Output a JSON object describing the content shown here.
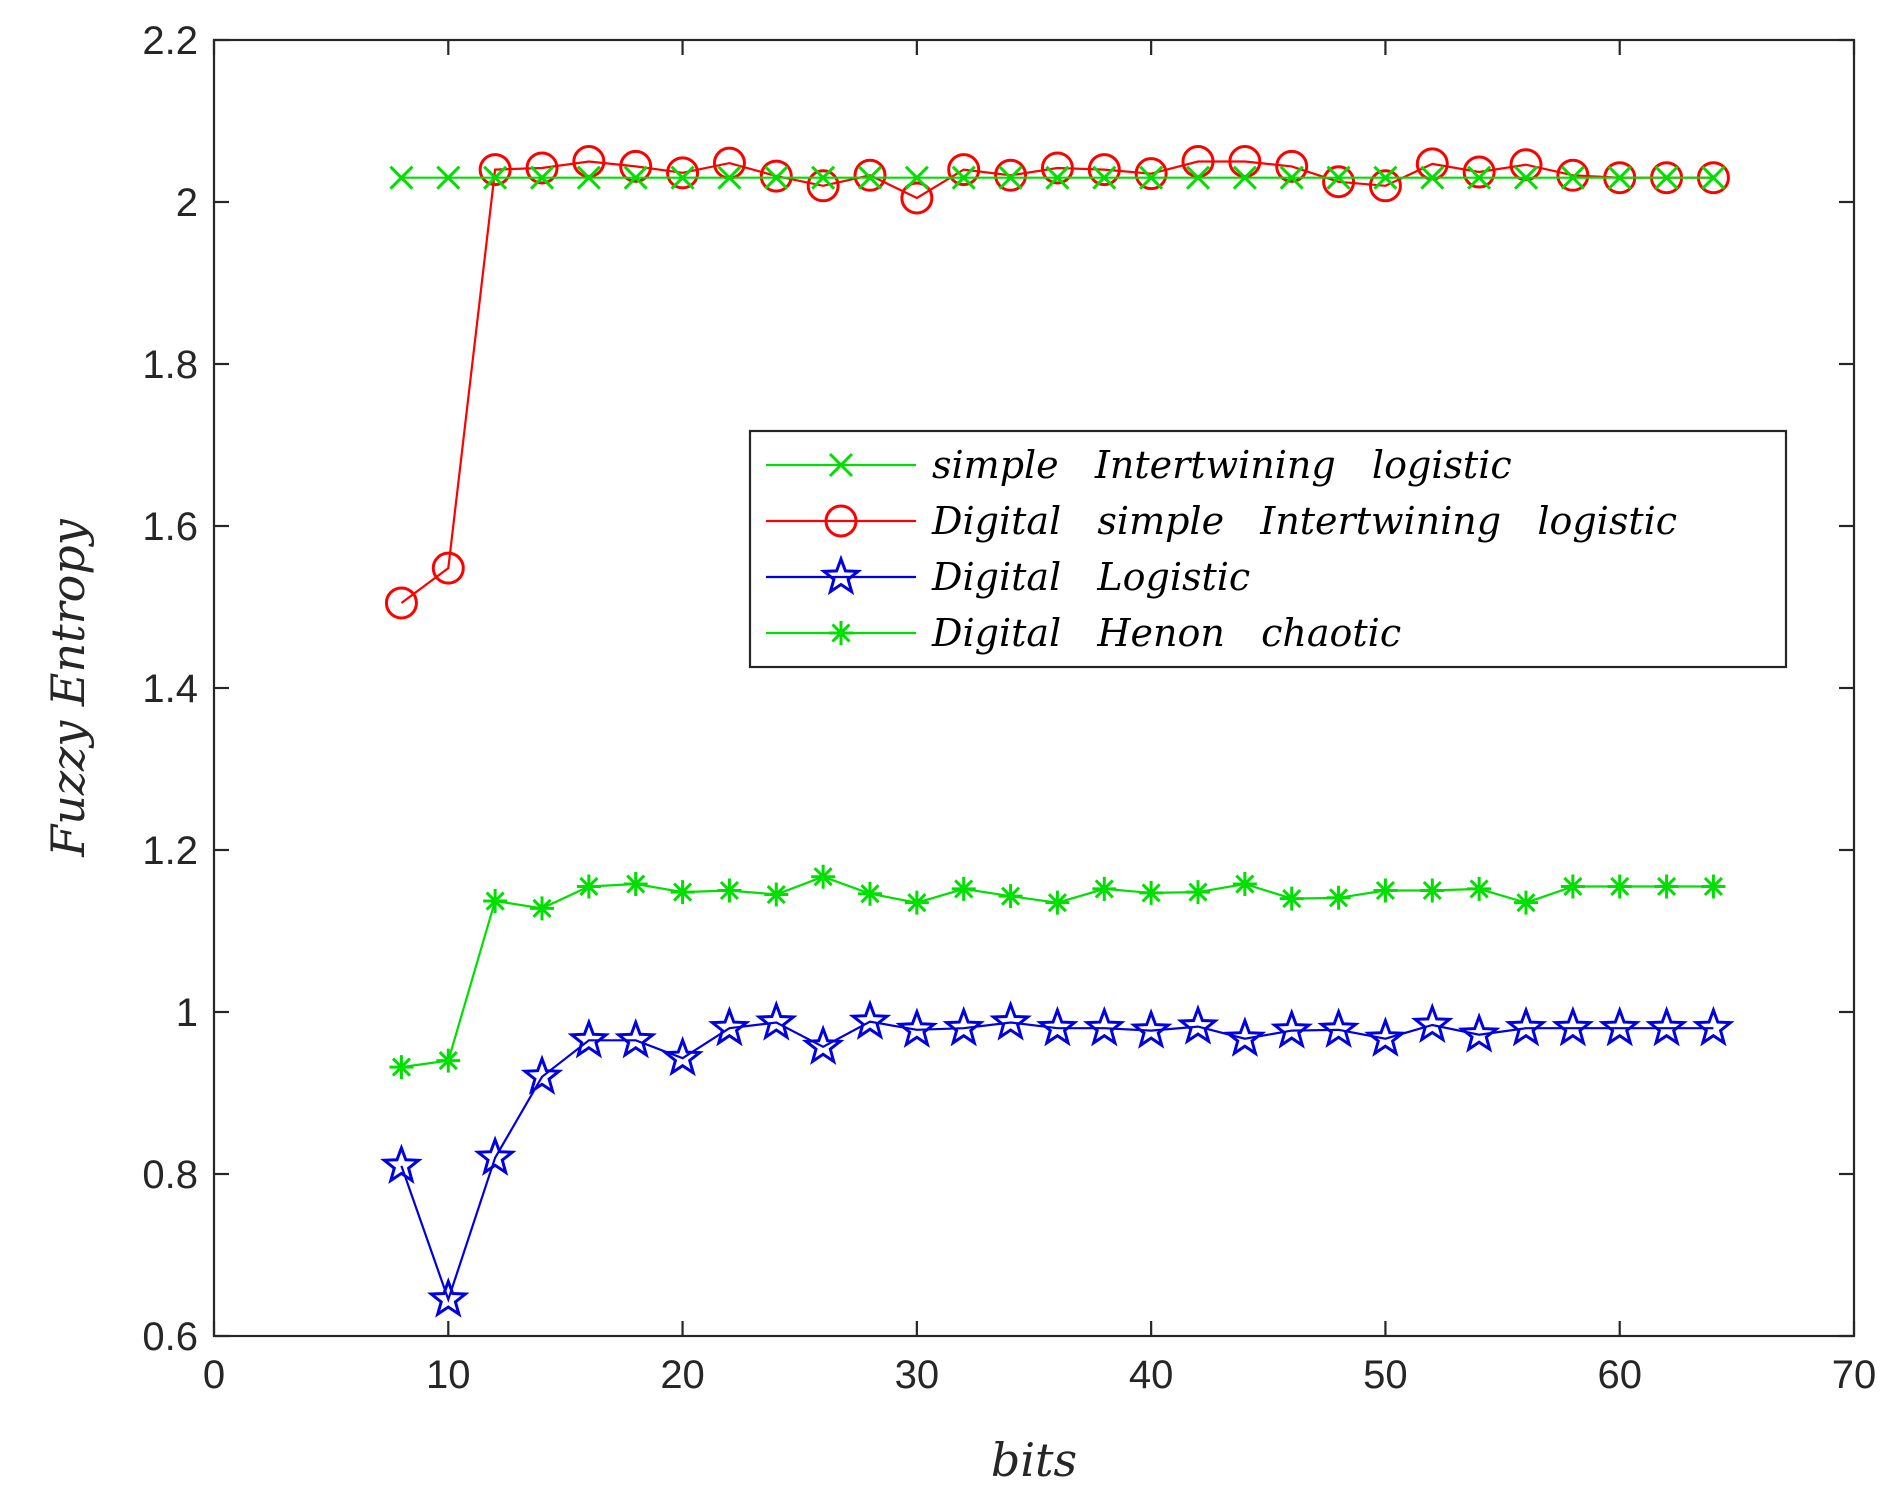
{
  "chart_data": {
    "type": "line",
    "xlabel": "bits",
    "ylabel": "Fuzzy   Entropy",
    "xlim": [
      0,
      70
    ],
    "ylim": [
      0.6,
      2.2
    ],
    "xticks": [
      0,
      10,
      20,
      30,
      40,
      50,
      60,
      70
    ],
    "yticks": [
      0.6,
      0.8,
      1,
      1.2,
      1.4,
      1.6,
      1.8,
      2,
      2.2
    ],
    "xtick_labels": [
      "0",
      "10",
      "20",
      "30",
      "40",
      "50",
      "60",
      "70"
    ],
    "ytick_labels": [
      "0.6",
      "0.8",
      "1",
      "1.2",
      "1.4",
      "1.6",
      "1.8",
      "2",
      "2.2"
    ],
    "grid": false,
    "legend_position": "center-right",
    "x": [
      8,
      10,
      12,
      14,
      16,
      18,
      20,
      22,
      24,
      26,
      28,
      30,
      32,
      34,
      36,
      38,
      40,
      42,
      44,
      46,
      48,
      50,
      52,
      54,
      56,
      58,
      60,
      62,
      64
    ],
    "series": [
      {
        "name": "simple   Intertwining   logistic",
        "color": "#00e000",
        "marker": "x",
        "values": [
          2.03,
          2.03,
          2.03,
          2.03,
          2.03,
          2.03,
          2.03,
          2.03,
          2.03,
          2.03,
          2.03,
          2.03,
          2.03,
          2.03,
          2.03,
          2.03,
          2.03,
          2.03,
          2.03,
          2.03,
          2.03,
          2.03,
          2.03,
          2.03,
          2.03,
          2.03,
          2.03,
          2.03,
          2.03
        ]
      },
      {
        "name": "Digital   simple   Intertwining   logistic",
        "color": "#ff0000",
        "marker": "o",
        "values": [
          1.505,
          1.548,
          2.04,
          2.042,
          2.05,
          2.044,
          2.036,
          2.048,
          2.032,
          2.02,
          2.033,
          2.005,
          2.04,
          2.033,
          2.042,
          2.04,
          2.035,
          2.05,
          2.05,
          2.044,
          2.025,
          2.02,
          2.047,
          2.037,
          2.046,
          2.033,
          2.03,
          2.03,
          2.03
        ]
      },
      {
        "name": "Digital   Logistic",
        "color": "#0000e0",
        "marker": "star",
        "values": [
          0.81,
          0.645,
          0.82,
          0.92,
          0.965,
          0.965,
          0.943,
          0.98,
          0.987,
          0.957,
          0.988,
          0.978,
          0.98,
          0.987,
          0.98,
          0.98,
          0.977,
          0.982,
          0.967,
          0.977,
          0.978,
          0.967,
          0.984,
          0.972,
          0.98,
          0.98,
          0.98,
          0.98,
          0.98
        ]
      },
      {
        "name": "Digital   Henon   chaotic",
        "color": "#00e000",
        "marker": "asterisk",
        "values": [
          0.932,
          0.94,
          1.137,
          1.128,
          1.155,
          1.158,
          1.148,
          1.15,
          1.145,
          1.167,
          1.146,
          1.135,
          1.152,
          1.143,
          1.135,
          1.152,
          1.147,
          1.148,
          1.158,
          1.14,
          1.141,
          1.15,
          1.15,
          1.152,
          1.135,
          1.155,
          1.155,
          1.155,
          1.155
        ]
      }
    ]
  }
}
